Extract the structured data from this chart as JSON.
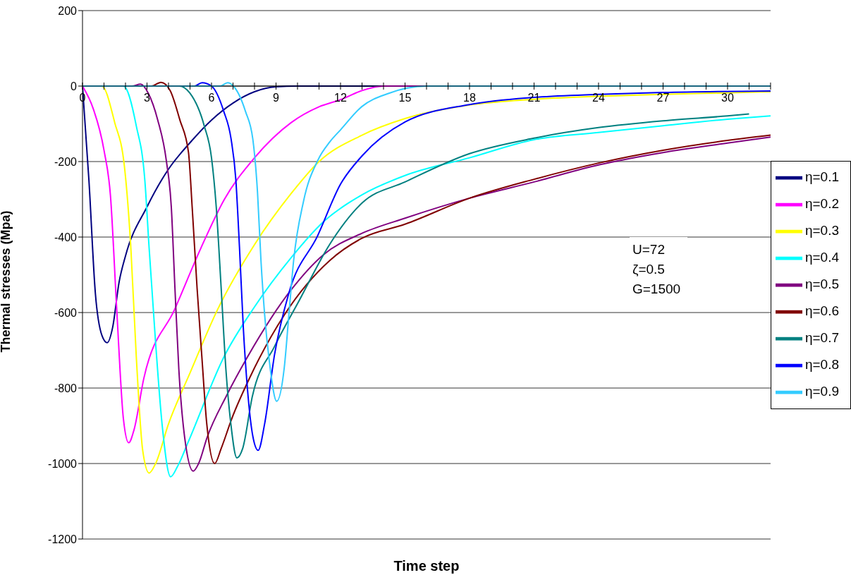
{
  "chart_data": {
    "type": "line",
    "xlabel": "Time step",
    "ylabel": "Thermal stresses (Mpa)",
    "xlim": [
      0,
      32
    ],
    "ylim": [
      -1200,
      200
    ],
    "xticks": [
      0,
      {
        "value": 1,
        "label": null
      },
      {
        "value": 2,
        "label": null
      },
      3,
      {
        "value": 4,
        "label": null
      },
      {
        "value": 5,
        "label": null
      },
      6,
      {
        "value": 7,
        "label": null
      },
      {
        "value": 8,
        "label": null
      },
      9,
      {
        "value": 10,
        "label": null
      },
      {
        "value": 11,
        "label": null
      },
      12,
      {
        "value": 13,
        "label": null
      },
      {
        "value": 14,
        "label": null
      },
      15,
      {
        "value": 16,
        "label": null
      },
      {
        "value": 17,
        "label": null
      },
      18,
      {
        "value": 19,
        "label": null
      },
      {
        "value": 20,
        "label": null
      },
      21,
      {
        "value": 22,
        "label": null
      },
      {
        "value": 23,
        "label": null
      },
      24,
      {
        "value": 25,
        "label": null
      },
      {
        "value": 26,
        "label": null
      },
      27,
      {
        "value": 28,
        "label": null
      },
      {
        "value": 29,
        "label": null
      },
      30,
      {
        "value": 31,
        "label": null
      },
      {
        "value": 32,
        "label": null
      }
    ],
    "yticks": [
      200,
      0,
      -200,
      -400,
      -600,
      -800,
      -1000,
      -1200
    ],
    "grid": "y",
    "legend": "right",
    "marker": "none",
    "line_style": "solid",
    "annotations": [
      "U=72",
      "ζ=0.5",
      "G=1500"
    ],
    "series": [
      {
        "name": "η=0.1",
        "color": "#000080",
        "x": [
          0,
          0.3,
          0.6,
          0.9,
          1.15,
          1.4,
          1.7,
          2,
          3,
          4,
          5,
          6,
          7,
          8,
          9,
          10,
          32
        ],
        "values": [
          0,
          -250,
          -550,
          -660,
          -680,
          -640,
          -520,
          -450,
          -320,
          -220,
          -150,
          -90,
          -45,
          -15,
          -2,
          0,
          0
        ]
      },
      {
        "name": "η=0.2",
        "color": "#ff00ff",
        "x": [
          0,
          0.5,
          1,
          1.3,
          1.6,
          1.9,
          2.15,
          2.4,
          2.85,
          4.3,
          5.5,
          6.6,
          8,
          9.7,
          11,
          12,
          13,
          14,
          32
        ],
        "values": [
          0,
          -60,
          -170,
          -290,
          -600,
          -880,
          -945,
          -910,
          -775,
          -590,
          -430,
          -300,
          -190,
          -97,
          -55,
          -36,
          -12,
          0,
          0
        ]
      },
      {
        "name": "η=0.3",
        "color": "#ffff00",
        "x": [
          0,
          0.9,
          1.5,
          1.95,
          2.25,
          2.5,
          2.8,
          3.1,
          3.4,
          4,
          5,
          6.3,
          8,
          9.7,
          11,
          13,
          15,
          18,
          21,
          24,
          27,
          32
        ],
        "values": [
          0,
          0,
          -97,
          -213,
          -430,
          -715,
          -965,
          -1025,
          -1000,
          -895,
          -760,
          -590,
          -420,
          -285,
          -200,
          -130,
          -86,
          -50,
          -35,
          -27,
          -22,
          -15
        ]
      },
      {
        "name": "η=0.4",
        "color": "#00ffff",
        "x": [
          0,
          1.9,
          2.5,
          2.9,
          3.1,
          3.4,
          3.7,
          4.1,
          4.4,
          4.9,
          6.6,
          8,
          9.7,
          11.2,
          13,
          15,
          18,
          21,
          24,
          27,
          30,
          32
        ],
        "values": [
          0,
          0,
          -105,
          -250,
          -430,
          -680,
          -895,
          -1035,
          -1010,
          -945,
          -715,
          -585,
          -455,
          -360,
          -288,
          -237,
          -190,
          -142,
          -123,
          -105,
          -88,
          -79
        ]
      },
      {
        "name": "η=0.5",
        "color": "#800080",
        "x": [
          0,
          2.3,
          2.7,
          3.06,
          3.5,
          3.9,
          4.13,
          4.3,
          4.48,
          4.75,
          5.15,
          5.4,
          5.8,
          6.7,
          7.7,
          9.7,
          11.2,
          13,
          15,
          18,
          21,
          24,
          27,
          30,
          32
        ],
        "values": [
          0,
          0,
          5,
          -19,
          -90,
          -198,
          -320,
          -536,
          -750,
          -930,
          -1020,
          -1000,
          -930,
          -820,
          -715,
          -540,
          -447,
          -390,
          -350,
          -297,
          -254,
          -209,
          -176,
          -151,
          -135
        ]
      },
      {
        "name": "η=0.6",
        "color": "#800000",
        "x": [
          0,
          3.2,
          3.65,
          4.07,
          4.53,
          4.93,
          5.1,
          5.33,
          5.55,
          5.78,
          6.15,
          6.45,
          6.95,
          7.8,
          9.4,
          11.5,
          13,
          15,
          18,
          21,
          24,
          27,
          30,
          32
        ],
        "values": [
          0,
          0,
          10,
          -11,
          -90,
          -176,
          -320,
          -536,
          -716,
          -895,
          -1000,
          -960,
          -880,
          -770,
          -605,
          -462,
          -403,
          -366,
          -297,
          -247,
          -204,
          -170,
          -144,
          -130
        ]
      },
      {
        "name": "η=0.7",
        "color": "#008080",
        "x": [
          0,
          4.5,
          5,
          5.66,
          6,
          6.22,
          6.45,
          6.67,
          6.9,
          7.18,
          7.45,
          7.9,
          8.93,
          10.06,
          11.5,
          13,
          15,
          18,
          21,
          24,
          27,
          30,
          31
        ],
        "values": [
          0,
          0,
          -19,
          -105,
          -190,
          -320,
          -536,
          -751,
          -895,
          -985,
          -960,
          -822,
          -690,
          -570,
          -419,
          -310,
          -254,
          -179,
          -138,
          -110,
          -92,
          -79,
          -74
        ]
      },
      {
        "name": "η=0.8",
        "color": "#0000ff",
        "x": [
          0,
          5.2,
          5.56,
          6,
          6.57,
          6.91,
          7.13,
          7.3,
          7.48,
          7.7,
          7.92,
          8.17,
          8.47,
          8.93,
          9.6,
          10.94,
          12,
          13,
          15,
          18,
          21,
          24,
          27,
          32
        ],
        "values": [
          0,
          0,
          9,
          0,
          -67,
          -140,
          -247,
          -426,
          -641,
          -821,
          -927,
          -965,
          -895,
          -712,
          -548,
          -396,
          -260,
          -185,
          -95,
          -49,
          -30,
          -22,
          -17,
          -13
        ]
      },
      {
        "name": "η=0.9",
        "color": "#33ccff",
        "x": [
          0,
          6.4,
          6.75,
          7.02,
          7.58,
          7.92,
          8.14,
          8.3,
          8.47,
          8.7,
          9.03,
          9.38,
          9.6,
          9.82,
          10.28,
          10.95,
          11.5,
          12,
          13,
          14.2,
          16,
          32
        ],
        "values": [
          0,
          0,
          9,
          0,
          -67,
          -140,
          -282,
          -462,
          -605,
          -734,
          -835,
          -748,
          -605,
          -462,
          -305,
          -196,
          -148,
          -116,
          -54,
          -20,
          0,
          0
        ]
      }
    ]
  }
}
